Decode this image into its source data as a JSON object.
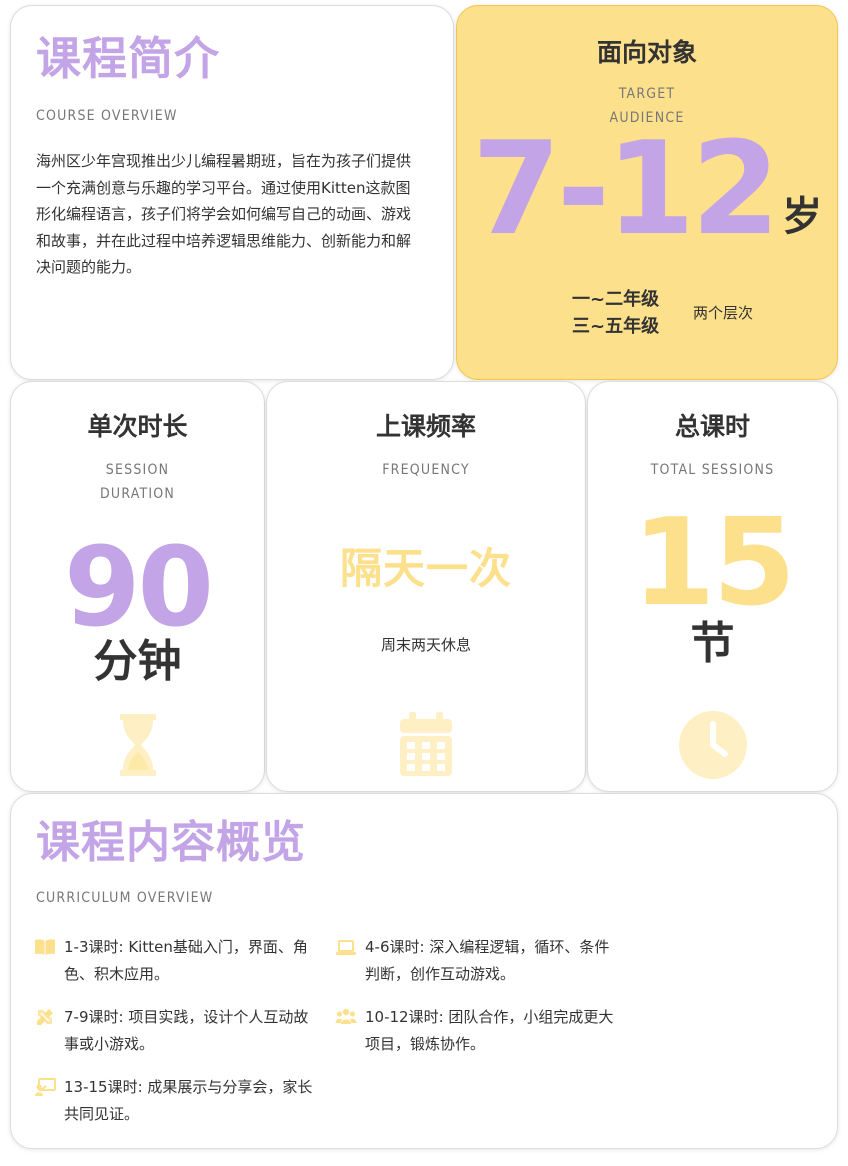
{
  "colors": {
    "accent_purple": "#c3a4e6",
    "accent_yellow": "#fde08c",
    "icon_yellow": "#fef0c4",
    "text_dark": "#333333"
  },
  "overview": {
    "title": "课程简介",
    "subtitle": "COURSE OVERVIEW",
    "body": "海州区少年宫现推出少儿编程暑期班，旨在为孩子们提供一个充满创意与乐趣的学习平台。通过使用Kitten这款图形化编程语言，孩子们将学会如何编写自己的动画、游戏和故事，并在此过程中培养逻辑思维能力、创新能力和解决问题的能力。"
  },
  "audience": {
    "title": "面向对象",
    "subtitle_line1": "TARGET",
    "subtitle_line2": "AUDIENCE",
    "age": "7-12",
    "age_unit": "岁",
    "grade1": "一~二年级",
    "grade2": "三~五年级",
    "levels": "两个层次"
  },
  "duration": {
    "title": "单次时长",
    "subtitle_line1": "SESSION",
    "subtitle_line2": "DURATION",
    "value": "90",
    "unit": "分钟",
    "icon": "hourglass-icon"
  },
  "frequency": {
    "title": "上课频率",
    "subtitle": "FREQUENCY",
    "value": "隔天一次",
    "note": "周末两天休息",
    "icon": "calendar-icon"
  },
  "sessions": {
    "title": "总课时",
    "subtitle": "TOTAL SESSIONS",
    "value": "15",
    "unit": "节",
    "icon": "clock-icon"
  },
  "curriculum": {
    "title": "课程内容概览",
    "subtitle": "CURRICULUM OVERVIEW",
    "items": [
      {
        "icon": "book-icon",
        "text": "1-3课时: Kitten基础入门，界面、角色、积木应用。"
      },
      {
        "icon": "laptop-icon",
        "text": "4-6课时: 深入编程逻辑，循环、条件判断，创作互动游戏。"
      },
      {
        "icon": "pencil-ruler-icon",
        "text": "7-9课时: 项目实践，设计个人互动故事或小游戏。"
      },
      {
        "icon": "team-icon",
        "text": "10-12课时: 团队合作，小组完成更大项目，锻炼协作。"
      },
      {
        "icon": "presentation-icon",
        "text": "13-15课时: 成果展示与分享会，家长共同见证。"
      }
    ]
  }
}
